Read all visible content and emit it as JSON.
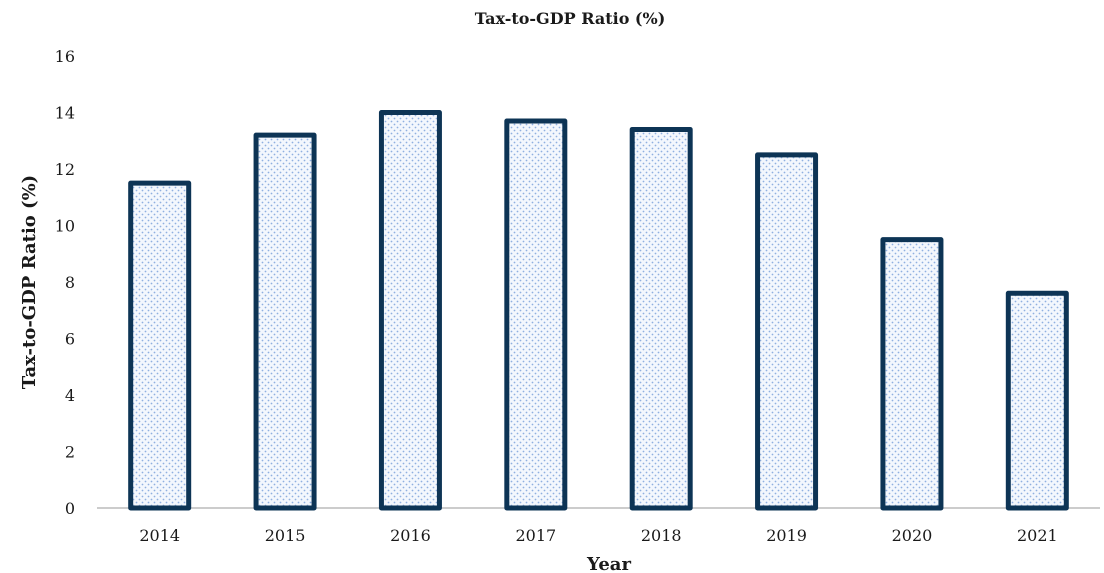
{
  "chart_data": {
    "type": "bar",
    "title": "Tax-to-GDP Ratio (%)",
    "xlabel": "Year",
    "ylabel": "Tax-to-GDP Ratio (%)",
    "categories": [
      "2014",
      "2015",
      "2016",
      "2017",
      "2018",
      "2019",
      "2020",
      "2021"
    ],
    "series": [
      {
        "values": [
          11.5,
          13.2,
          14.0,
          13.7,
          13.4,
          12.5,
          9.5,
          7.6
        ]
      }
    ],
    "ylim": [
      0,
      16
    ],
    "yticks": [
      "0",
      "2",
      "4",
      "6",
      "8",
      "10",
      "12",
      "14",
      "16"
    ],
    "grid": false,
    "legend": "none",
    "colors": {
      "bar_stroke": "#0d3455",
      "bar_pattern": "#8fb0e0",
      "axis": "#999999"
    }
  }
}
